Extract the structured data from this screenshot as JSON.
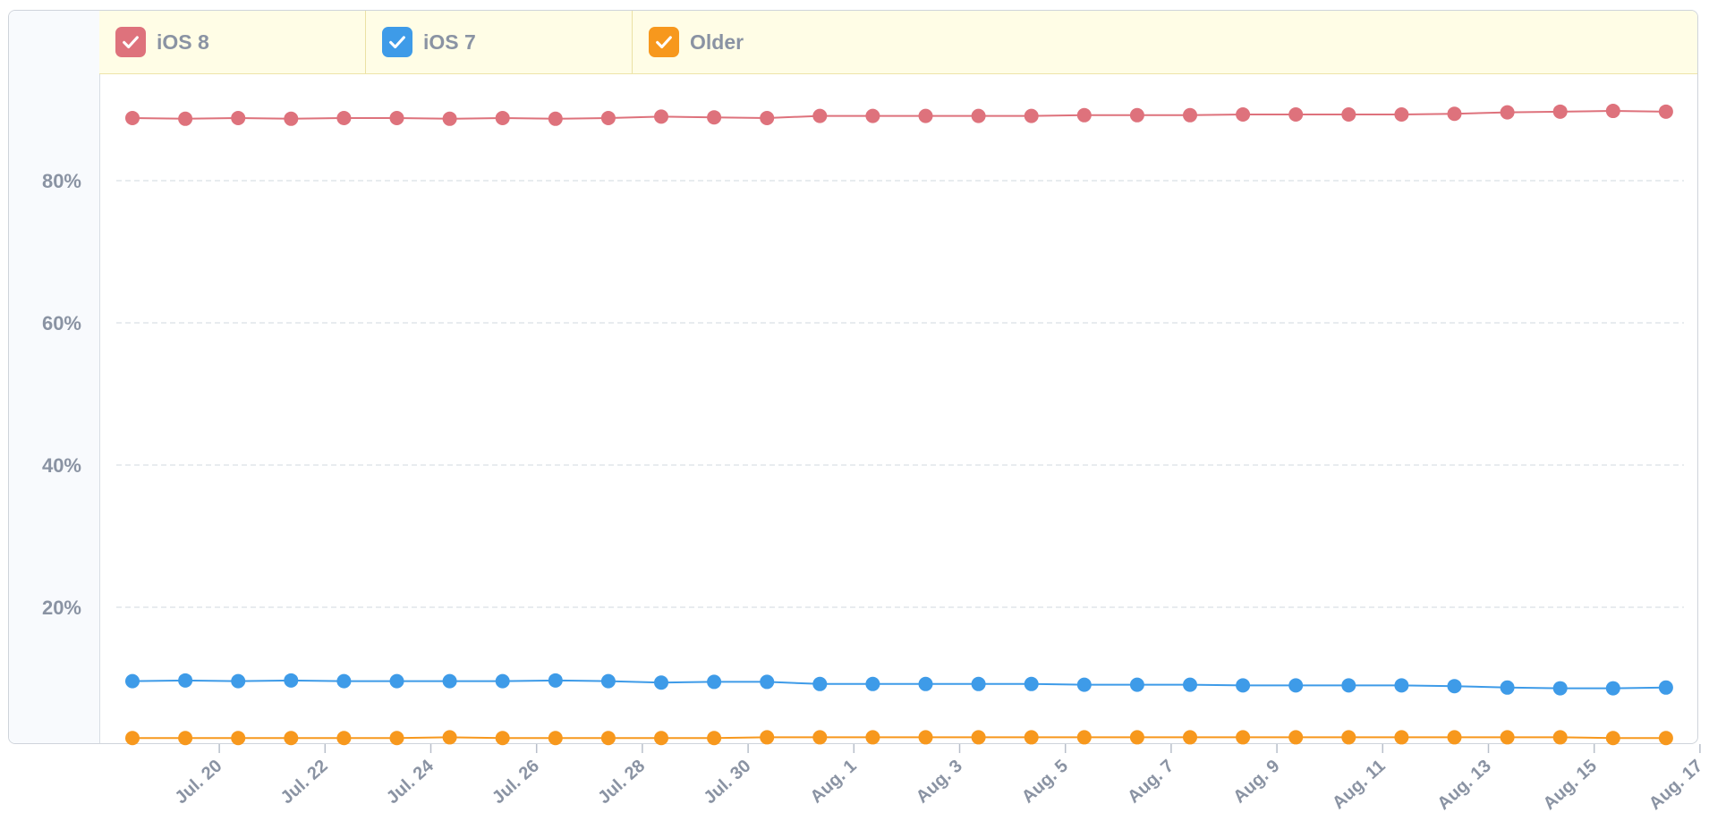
{
  "legend": [
    {
      "label": "iOS 8",
      "color": "#de727c",
      "checked": true,
      "icon": "checkmark-icon"
    },
    {
      "label": "iOS 7",
      "color": "#3e9be8",
      "checked": true,
      "icon": "checkmark-icon"
    },
    {
      "label": "Older",
      "color": "#f7981d",
      "checked": true,
      "icon": "checkmark-icon"
    }
  ],
  "chart_data": {
    "type": "line",
    "x_tick_labels": [
      "Jul. 20",
      "Jul. 22",
      "Jul. 24",
      "Jul. 26",
      "Jul. 28",
      "Jul. 30",
      "Aug. 1",
      "Aug. 3",
      "Aug. 5",
      "Aug. 7",
      "Aug. 9",
      "Aug. 11",
      "Aug. 13",
      "Aug. 15",
      "Aug. 17"
    ],
    "x": [
      "Jul. 19",
      "Jul. 20",
      "Jul. 21",
      "Jul. 22",
      "Jul. 23",
      "Jul. 24",
      "Jul. 25",
      "Jul. 26",
      "Jul. 27",
      "Jul. 28",
      "Jul. 29",
      "Jul. 30",
      "Jul. 31",
      "Aug. 1",
      "Aug. 2",
      "Aug. 3",
      "Aug. 4",
      "Aug. 5",
      "Aug. 6",
      "Aug. 7",
      "Aug. 8",
      "Aug. 9",
      "Aug. 10",
      "Aug. 11",
      "Aug. 12",
      "Aug. 13",
      "Aug. 14",
      "Aug. 15",
      "Aug. 16",
      "Aug. 17"
    ],
    "y_tick_labels": [
      "20%",
      "40%",
      "60%",
      "80%"
    ],
    "y_ticks": [
      20,
      40,
      60,
      80
    ],
    "ylim": [
      1,
      96
    ],
    "grid": true,
    "legend_position": "top",
    "series": [
      {
        "name": "iOS 8",
        "color": "#de727c",
        "values": [
          88.8,
          88.7,
          88.8,
          88.7,
          88.8,
          88.8,
          88.7,
          88.8,
          88.7,
          88.8,
          89.0,
          88.9,
          88.8,
          89.1,
          89.1,
          89.1,
          89.1,
          89.1,
          89.2,
          89.2,
          89.2,
          89.3,
          89.3,
          89.3,
          89.3,
          89.4,
          89.6,
          89.7,
          89.8,
          89.7
        ]
      },
      {
        "name": "iOS 7",
        "color": "#3e9be8",
        "values": [
          9.6,
          9.7,
          9.6,
          9.7,
          9.6,
          9.6,
          9.6,
          9.6,
          9.7,
          9.6,
          9.4,
          9.5,
          9.5,
          9.2,
          9.2,
          9.2,
          9.2,
          9.2,
          9.1,
          9.1,
          9.1,
          9.0,
          9.0,
          9.0,
          9.0,
          8.9,
          8.7,
          8.6,
          8.6,
          8.7
        ]
      },
      {
        "name": "Older",
        "color": "#f7981d",
        "values": [
          1.6,
          1.6,
          1.6,
          1.6,
          1.6,
          1.6,
          1.7,
          1.6,
          1.6,
          1.6,
          1.6,
          1.6,
          1.7,
          1.7,
          1.7,
          1.7,
          1.7,
          1.7,
          1.7,
          1.7,
          1.7,
          1.7,
          1.7,
          1.7,
          1.7,
          1.7,
          1.7,
          1.7,
          1.6,
          1.6
        ]
      }
    ]
  }
}
